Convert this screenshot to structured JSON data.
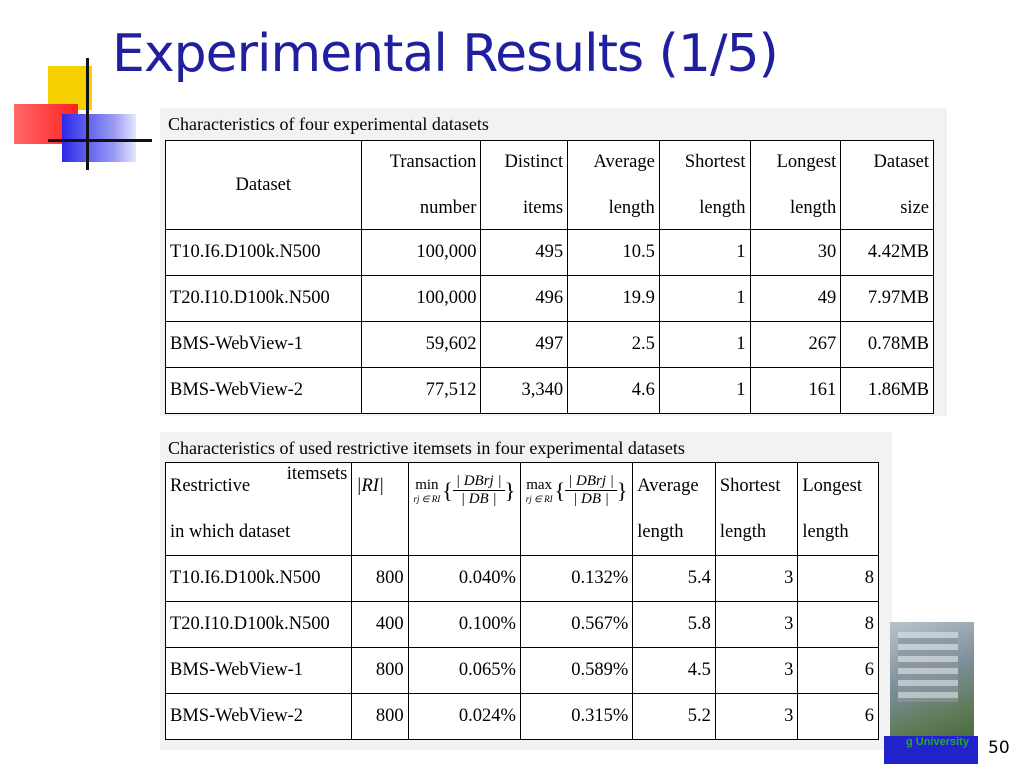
{
  "title": "Experimental Results (1/5)",
  "page_number": "50",
  "footer_text": "g University",
  "table1": {
    "caption": "Characteristics of four experimental datasets",
    "headers": [
      {
        "line1": "Dataset",
        "line2": ""
      },
      {
        "line1": "Transaction",
        "line2": "number"
      },
      {
        "line1": "Distinct",
        "line2": "items"
      },
      {
        "line1": "Average",
        "line2": "length"
      },
      {
        "line1": "Shortest",
        "line2": "length"
      },
      {
        "line1": "Longest",
        "line2": "length"
      },
      {
        "line1": "Dataset",
        "line2": "size"
      }
    ],
    "rows": [
      [
        "T10.I6.D100k.N500",
        "100,000",
        "495",
        "10.5",
        "1",
        "30",
        "4.42MB"
      ],
      [
        "T20.I10.D100k.N500",
        "100,000",
        "496",
        "19.9",
        "1",
        "49",
        "7.97MB"
      ],
      [
        "BMS-WebView-1",
        "59,602",
        "497",
        "2.5",
        "1",
        "267",
        "0.78MB"
      ],
      [
        "BMS-WebView-2",
        "77,512",
        "3,340",
        "4.6",
        "1",
        "161",
        "1.86MB"
      ]
    ]
  },
  "table2": {
    "caption": "Characteristics of used restrictive itemsets in four experimental datasets",
    "headers": {
      "col1_line1a": "Restrictive",
      "col1_line1b": "itemsets",
      "col1_line2": "in which dataset",
      "col2": "|RI|",
      "col3_op": "min",
      "col4_op": "max",
      "op_sub": "rj ∈ RI",
      "frac_num": "| DBrj |",
      "frac_den": "| DB |",
      "col5_line1": "Average",
      "col5_line2": "length",
      "col6_line1": "Shortest",
      "col6_line2": "length",
      "col7_line1": "Longest",
      "col7_line2": "length"
    },
    "rows": [
      [
        "T10.I6.D100k.N500",
        "800",
        "0.040%",
        "0.132%",
        "5.4",
        "3",
        "8"
      ],
      [
        "T20.I10.D100k.N500",
        "400",
        "0.100%",
        "0.567%",
        "5.8",
        "3",
        "8"
      ],
      [
        "BMS-WebView-1",
        "800",
        "0.065%",
        "0.589%",
        "4.5",
        "3",
        "6"
      ],
      [
        "BMS-WebView-2",
        "800",
        "0.024%",
        "0.315%",
        "5.2",
        "3",
        "6"
      ]
    ]
  }
}
